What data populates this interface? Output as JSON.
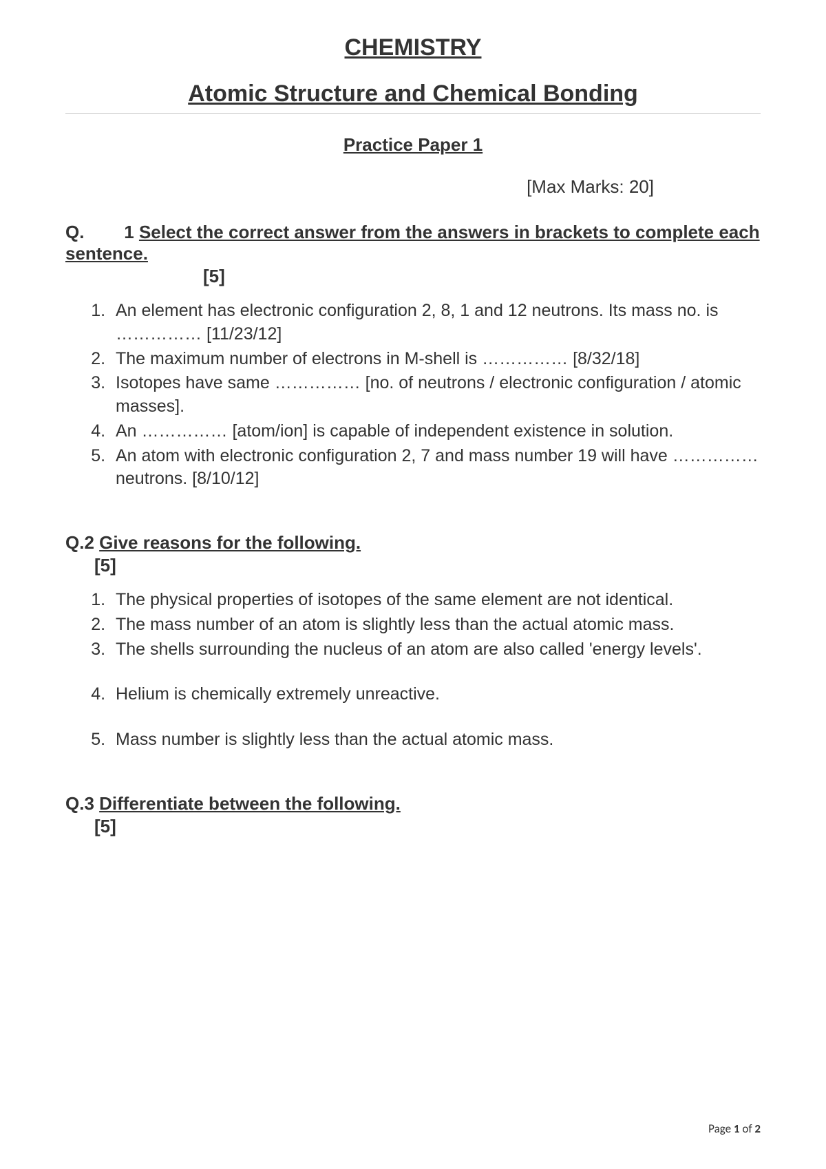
{
  "header": {
    "title": "CHEMISTRY",
    "subtitle": "Atomic Structure and Chemical Bonding",
    "paper_title": "Practice Paper 1",
    "max_marks": "[Max Marks: 20]"
  },
  "q1": {
    "prefix": "Q.",
    "number_gap": "1 ",
    "title": "Select the correct answer from the answers in brackets to complete each sentence.",
    "marks": "[5]",
    "items": [
      "An element has electronic configuration 2, 8, 1 and 12 neutrons. Its mass no. is …………… [11/23/12]",
      "The maximum number of electrons in M-shell is …………… [8/32/18]",
      "Isotopes have same …………… [no. of neutrons / electronic configuration / atomic masses].",
      "An …………… [atom/ion] is capable of independent existence in solution.",
      "An atom with electronic configuration 2, 7 and mass number 19 will have …………… neutrons. [8/10/12]"
    ]
  },
  "q2": {
    "prefix": "Q.2 ",
    "title": "Give reasons for the following.",
    "marks": "[5]",
    "items": [
      "The physical properties of isotopes of the same element are not identical.",
      "The mass number of an atom is slightly less than the actual atomic mass.",
      "The shells surrounding the nucleus of an atom are also called 'energy levels'.",
      "Helium is chemically extremely unreactive.",
      "Mass number is slightly less than the actual atomic mass."
    ]
  },
  "q3": {
    "prefix": "Q.3 ",
    "title": "Differentiate between the following.",
    "marks": "[5]"
  },
  "footer": {
    "label": "Page ",
    "current": "1",
    "of": " of ",
    "total": "2"
  }
}
